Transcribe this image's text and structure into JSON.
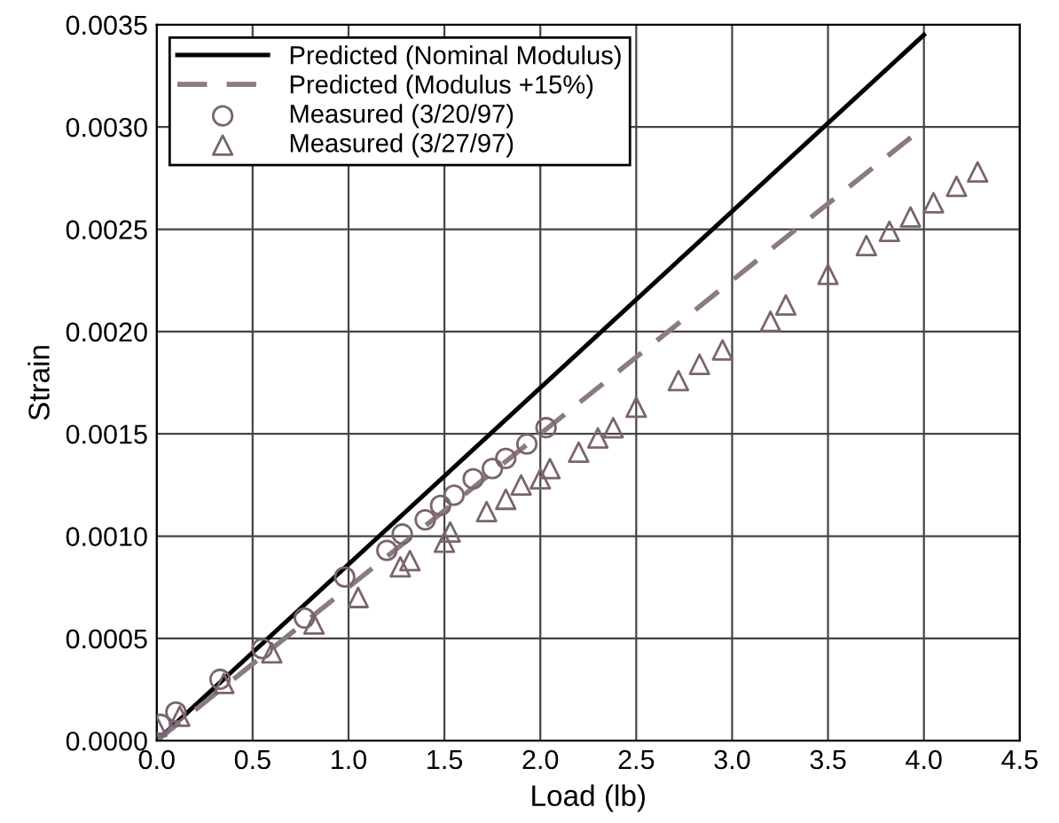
{
  "chart_data": {
    "type": "line",
    "xlabel": "Load (lb)",
    "ylabel": "Strain",
    "xlim": [
      0,
      4.5
    ],
    "ylim": [
      0,
      0.0035
    ],
    "xticks": [
      {
        "value": 0,
        "label": "0.0"
      },
      0.5,
      {
        "value": 1,
        "label": "1.0"
      },
      1.5,
      {
        "value": 2,
        "label": "2.0"
      },
      2.5,
      {
        "value": 3,
        "label": "3.0"
      },
      3.5,
      {
        "value": 4,
        "label": "4.0"
      },
      4.5
    ],
    "yticks": [
      {
        "value": 0,
        "label": "0.0000"
      },
      {
        "value": 0.0005,
        "label": "0.0005"
      },
      {
        "value": 0.001,
        "label": "0.0010"
      },
      {
        "value": 0.0015,
        "label": "0.0015"
      },
      {
        "value": 0.002,
        "label": "0.0020"
      },
      {
        "value": 0.0025,
        "label": "0.0025"
      },
      {
        "value": 0.003,
        "label": "0.0030"
      },
      {
        "value": 0.0035,
        "label": "0.0035"
      }
    ],
    "grid": true,
    "legend": "top left",
    "series": [
      {
        "name": "Predicted (Nominal Modulus)",
        "line_style": "solid",
        "marker": "none",
        "color": "#000000",
        "x": [
          0,
          4.0
        ],
        "values": [
          0,
          0.00345
        ]
      },
      {
        "name": "Predicted (Modulus +15%)",
        "line_style": "dashed",
        "marker": "none",
        "color": "#8a7a84",
        "x": [
          0,
          4.0
        ],
        "values": [
          0,
          0.003
        ]
      },
      {
        "name": "Measured (3/20/97)",
        "type": "scatter",
        "marker": "circle",
        "color": "#7a6470",
        "x": [
          0.02,
          0.1,
          0.33,
          0.55,
          0.77,
          0.98,
          1.2,
          1.28,
          1.4,
          1.48,
          1.55,
          1.65,
          1.75,
          1.82,
          1.93,
          2.03
        ],
        "values": [
          8e-05,
          0.00014,
          0.0003,
          0.00045,
          0.0006,
          0.0008,
          0.00093,
          0.00101,
          0.00108,
          0.00115,
          0.0012,
          0.00128,
          0.00133,
          0.00138,
          0.00145,
          0.00153
        ]
      },
      {
        "name": "Measured (3/27/97)",
        "type": "scatter",
        "marker": "triangle",
        "color": "#7a6470",
        "x": [
          0.0,
          0.12,
          0.35,
          0.6,
          0.82,
          1.05,
          1.27,
          1.32,
          1.5,
          1.53,
          1.72,
          1.82,
          1.9,
          2.0,
          2.05,
          2.2,
          2.3,
          2.38,
          2.5,
          2.72,
          2.83,
          2.95,
          3.2,
          3.28,
          3.5,
          3.7,
          3.82,
          3.93,
          4.05,
          4.17,
          4.28
        ],
        "values": [
          7e-05,
          0.00012,
          0.00028,
          0.00043,
          0.00057,
          0.0007,
          0.00085,
          0.00088,
          0.00097,
          0.00102,
          0.00112,
          0.00118,
          0.00125,
          0.00128,
          0.00133,
          0.00141,
          0.00148,
          0.00153,
          0.00163,
          0.00176,
          0.00184,
          0.00191,
          0.00205,
          0.00213,
          0.00228,
          0.00242,
          0.00249,
          0.00256,
          0.00263,
          0.00271,
          0.00278
        ]
      }
    ]
  }
}
